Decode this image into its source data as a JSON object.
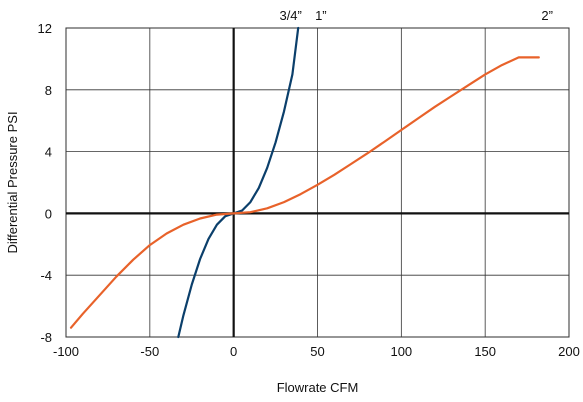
{
  "chart_data": {
    "type": "line",
    "title": "",
    "xlabel": "Flowrate CFM",
    "ylabel": "Differential Pressure PSI",
    "xlim": [
      -100,
      200
    ],
    "ylim": [
      -8,
      12
    ],
    "x_ticks": [
      -100,
      -50,
      0,
      50,
      100,
      150,
      200
    ],
    "y_ticks": [
      -8,
      -4,
      0,
      4,
      8,
      12
    ],
    "x_tick_labels": [
      "-100",
      "-50",
      "0",
      "50",
      "100",
      "150",
      "200"
    ],
    "y_tick_labels": [
      "-8",
      "-4",
      "0",
      "4",
      "8",
      "12"
    ],
    "grid": true,
    "top_labels": [
      {
        "text": "3/4”",
        "x": 34
      },
      {
        "text": "1”",
        "x": 52
      },
      {
        "text": "2”",
        "x": 187
      }
    ],
    "series": [
      {
        "color": "#0b3f6b",
        "x": [
          -33,
          -30,
          -25,
          -20,
          -15,
          -10,
          -5,
          0,
          5,
          10,
          15,
          20,
          25,
          30,
          35,
          38.5
        ],
        "y": [
          -8,
          -6.6,
          -4.6,
          -2.95,
          -1.65,
          -0.73,
          -0.18,
          0,
          0.18,
          0.73,
          1.65,
          2.95,
          4.6,
          6.6,
          9.0,
          12
        ]
      },
      {
        "color": "#e8622a",
        "x": [
          -97,
          -90,
          -80,
          -70,
          -60,
          -50,
          -40,
          -30,
          -20,
          -10,
          0,
          10,
          20,
          30,
          40,
          50,
          60,
          70,
          80,
          90,
          100,
          110,
          120,
          130,
          140,
          150,
          160,
          170,
          182
        ],
        "y": [
          -7.4,
          -6.5,
          -5.3,
          -4.1,
          -3.0,
          -2.05,
          -1.3,
          -0.73,
          -0.33,
          -0.08,
          0,
          0.08,
          0.33,
          0.73,
          1.25,
          1.85,
          2.5,
          3.2,
          3.9,
          4.65,
          5.4,
          6.15,
          6.9,
          7.6,
          8.3,
          9.0,
          9.6,
          10.1,
          10.1
        ]
      }
    ]
  }
}
